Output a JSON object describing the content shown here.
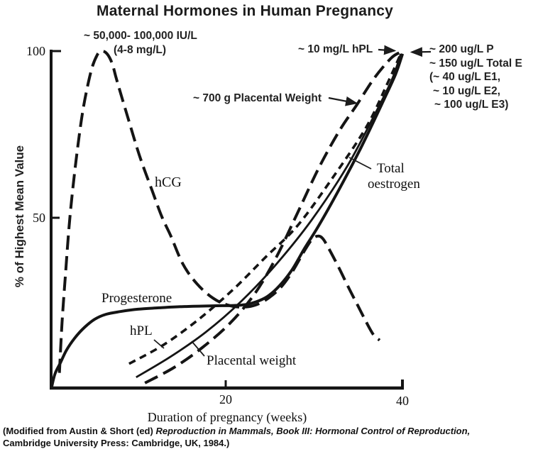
{
  "title": "Maternal Hormones in Human Pregnancy",
  "chart_data": {
    "type": "line",
    "title": "Maternal Hormones in Human Pregnancy",
    "xlabel": "Duration of pregnancy (weeks)",
    "ylabel": "% of Highest Mean Value",
    "xlim": [
      0,
      40
    ],
    "ylim": [
      0,
      100
    ],
    "x_ticks": [
      20,
      40
    ],
    "y_ticks": [
      50,
      100
    ],
    "grid": false,
    "legend_position": "inline-labels",
    "series": [
      {
        "name": "Total oestrogen",
        "style": "solid",
        "points": [
          [
            9.8,
            3.2
          ],
          [
            13.7,
            9.3
          ],
          [
            17.7,
            16.6
          ],
          [
            21.7,
            25.7
          ],
          [
            25.7,
            36.8
          ],
          [
            29.7,
            49.9
          ],
          [
            33.7,
            65.7
          ],
          [
            36.9,
            81.5
          ],
          [
            38.8,
            91.6
          ],
          [
            39.8,
            99.2
          ]
        ]
      },
      {
        "name": "hPL",
        "style": "short-dash",
        "points": [
          [
            9.0,
            7.2
          ],
          [
            12.9,
            12.8
          ],
          [
            16.9,
            20.4
          ],
          [
            20.9,
            29.5
          ],
          [
            24.5,
            38.9
          ],
          [
            28.1,
            48.2
          ],
          [
            32.1,
            62.5
          ],
          [
            35.9,
            77.5
          ],
          [
            38.3,
            90.5
          ],
          [
            39.8,
            99.2
          ]
        ]
      },
      {
        "name": "Placental weight",
        "style": "long-dash",
        "points": [
          [
            10.8,
            1.5
          ],
          [
            14.1,
            6.1
          ],
          [
            17.3,
            12.0
          ],
          [
            20.5,
            19.4
          ],
          [
            23.3,
            28.2
          ],
          [
            25.7,
            38.9
          ],
          [
            28.1,
            52.0
          ],
          [
            30.5,
            65.3
          ],
          [
            32.8,
            76.2
          ],
          [
            34.8,
            84.0
          ],
          [
            36.8,
            92.0
          ],
          [
            38.7,
            97.9
          ],
          [
            39.7,
            99.6
          ]
        ]
      },
      {
        "name": "Progesterone",
        "style": "solid-thick",
        "points": [
          [
            0.2,
            0
          ],
          [
            0.6,
            4.2
          ],
          [
            1.2,
            7.4
          ],
          [
            1.9,
            11.2
          ],
          [
            2.8,
            14.7
          ],
          [
            3.9,
            17.9
          ],
          [
            5.1,
            20.4
          ],
          [
            6.4,
            21.9
          ],
          [
            8.0,
            22.7
          ],
          [
            10.0,
            23.4
          ],
          [
            12.4,
            23.8
          ],
          [
            15.3,
            24.2
          ],
          [
            18.5,
            24.4
          ],
          [
            21.7,
            24.6
          ],
          [
            23.3,
            25.5
          ],
          [
            24.7,
            27.2
          ],
          [
            26.1,
            30.5
          ],
          [
            27.5,
            35.2
          ],
          [
            28.9,
            41.5
          ],
          [
            30.5,
            48.2
          ],
          [
            32.9,
            59.4
          ],
          [
            35.3,
            71.4
          ],
          [
            37.6,
            84.0
          ],
          [
            39.2,
            93.1
          ],
          [
            40.0,
            99.2
          ]
        ]
      },
      {
        "name": "hCG",
        "style": "long-dash",
        "points": [
          [
            1.1,
            4.5
          ],
          [
            1.4,
            19.4
          ],
          [
            1.8,
            34.1
          ],
          [
            2.3,
            50.9
          ],
          [
            3.0,
            67.8
          ],
          [
            3.8,
            82.9
          ],
          [
            4.7,
            94.1
          ],
          [
            5.4,
            98.9
          ],
          [
            5.9,
            100
          ],
          [
            6.5,
            99.2
          ],
          [
            7.1,
            96.2
          ],
          [
            7.6,
            91.4
          ],
          [
            8.8,
            80.8
          ],
          [
            10.2,
            68.8
          ],
          [
            11.6,
            58.7
          ],
          [
            12.7,
            50.9
          ],
          [
            13.7,
            45.3
          ],
          [
            15.1,
            36.8
          ],
          [
            16.7,
            30.9
          ],
          [
            18.5,
            26.7
          ],
          [
            20.2,
            24.6
          ],
          [
            21.8,
            24.0
          ],
          [
            23.3,
            24.6
          ],
          [
            24.7,
            26.5
          ],
          [
            26.2,
            29.9
          ],
          [
            27.5,
            34.5
          ],
          [
            28.8,
            40.4
          ],
          [
            29.7,
            44.0
          ],
          [
            30.4,
            45.1
          ],
          [
            31.0,
            44.2
          ],
          [
            31.8,
            40.6
          ],
          [
            32.8,
            35.6
          ],
          [
            33.9,
            29.7
          ],
          [
            34.9,
            24.6
          ],
          [
            35.8,
            20.0
          ],
          [
            36.7,
            15.8
          ],
          [
            37.4,
            14.2
          ]
        ]
      }
    ],
    "annotations": [
      "~ 50,000- 100,000 IU/L (4-8 mg/L) at hCG peak",
      "~ 10 mg/L hPL at term",
      "~ 200 ug/L P at term",
      "~ 150 ug/L Total E (~ 40 ug/L E1, ~ 10 ug/L E2, ~ 100 ug/L E3) at term",
      "~ 700 g Placental Weight at term"
    ],
    "line_color": "#141414"
  },
  "axes": {
    "y_label": "% of Highest Mean Value",
    "x_label": "Duration of pregnancy (weeks)",
    "y_tick_100": "100",
    "y_tick_50": "50",
    "x_tick_20": "20",
    "x_tick_40": "40"
  },
  "curve_labels": {
    "hcg": "hCG",
    "progesterone": "Progesterone",
    "hpl": "hPL",
    "placental_weight": "Placental weight",
    "total_oestrogen_line1": "Total",
    "total_oestrogen_line2": "oestrogen"
  },
  "annotations": {
    "hcg_peak_line1": "~ 50,000- 100,000 IU/L",
    "hcg_peak_line2": "(4-8 mg/L)",
    "hpl_term": "~ 10 mg/L hPL",
    "term_line1": "~ 200 ug/L P",
    "term_line2": "~ 150 ug/L Total E",
    "term_line3": "(~ 40 ug/L E1,",
    "term_line4": "~ 10 ug/L E2,",
    "term_line5": "~ 100 ug/L E3)",
    "placental_700": "~ 700 g Placental Weight"
  },
  "caption": {
    "line1_prefix": "(Modified from Austin & Short (ed) ",
    "line1_italic": "Reproduction in Mammals, Book III: Hormonal Control of Reproduction,",
    "line2": "Cambridge University Press: Cambridge, UK, 1984.)"
  }
}
